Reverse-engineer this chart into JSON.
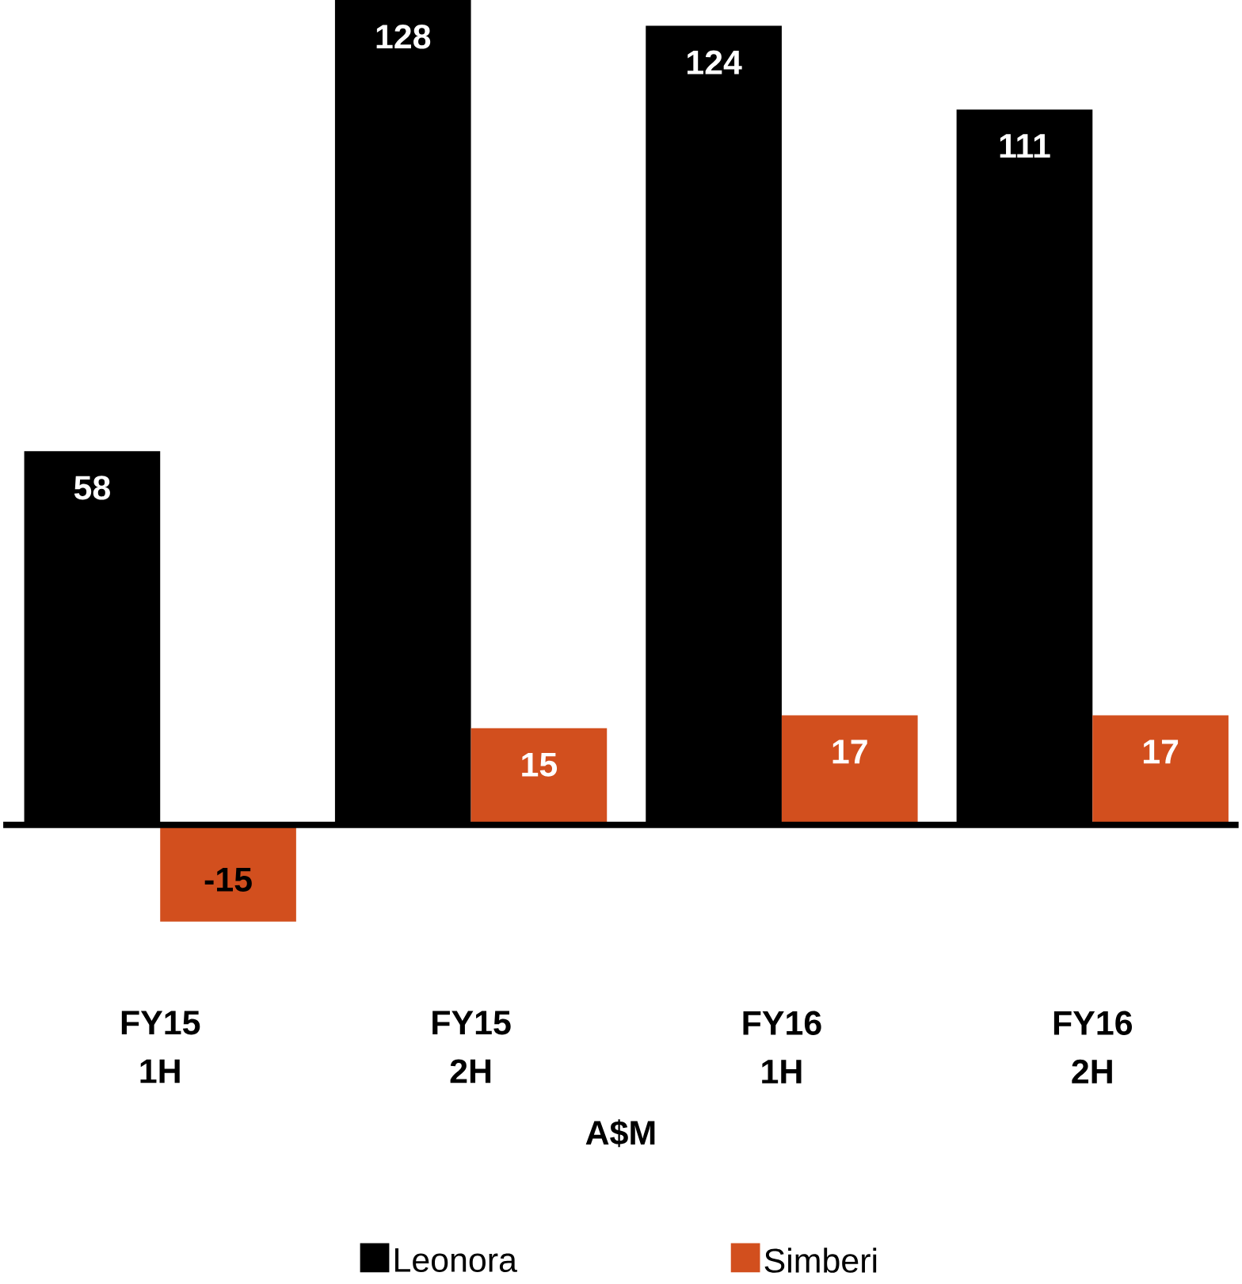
{
  "chart_data": {
    "type": "bar",
    "xlabel": "A$M",
    "categories": [
      "FY15 1H",
      "FY15 2H",
      "FY16 1H",
      "FY16 2H"
    ],
    "series": [
      {
        "name": "Leonora",
        "color": "#000000",
        "values": [
          58,
          128,
          124,
          111
        ]
      },
      {
        "name": "Simberi",
        "color": "#d24f1e",
        "values": [
          -15,
          15,
          17,
          17
        ]
      }
    ],
    "data_labels": true,
    "legend": "bottom"
  }
}
